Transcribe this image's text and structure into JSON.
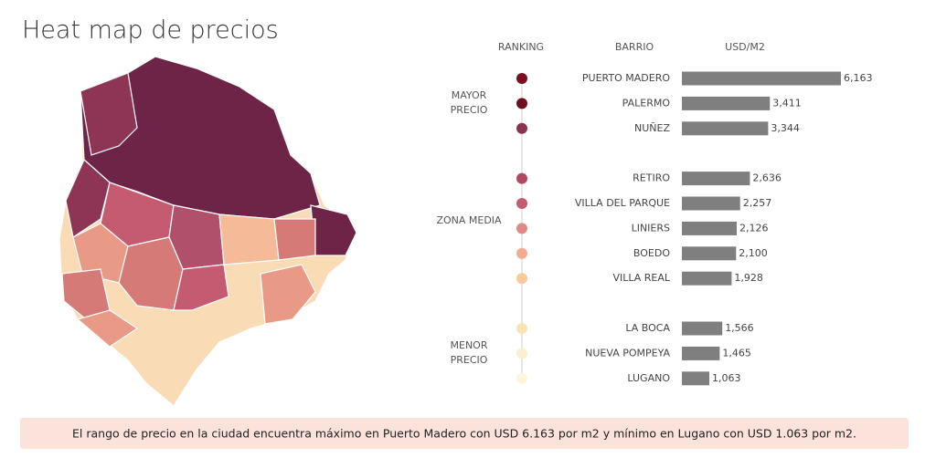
{
  "title": "Heat map de precios",
  "chart_data": {
    "type": "bar",
    "orientation": "horizontal",
    "headers": [
      "RANKING",
      "BARRIO",
      "USD/M2"
    ],
    "xlim": [
      0,
      6200
    ],
    "color": "#7f7f7f",
    "groups": [
      {
        "label": "MAYOR PRECIO",
        "categories": [
          "PUERTO MADERO",
          "PALERMO",
          "NUÑEZ"
        ],
        "values": [
          6163,
          3411,
          3344
        ],
        "value_labels": [
          "6,163",
          "3,411",
          "3,344"
        ],
        "colors": [
          "#7a0f22",
          "#6e0e1e",
          "#8a3350"
        ]
      },
      {
        "label": "ZONA MEDIA",
        "categories": [
          "RETIRO",
          "VILLA DEL PARQUE",
          "LINIERS",
          "BOEDO",
          "VILLA REAL"
        ],
        "values": [
          2636,
          2257,
          2126,
          2100,
          1928
        ],
        "value_labels": [
          "2,636",
          "2,257",
          "2,126",
          "2,100",
          "1,928"
        ],
        "colors": [
          "#b04860",
          "#c45b70",
          "#e08a88",
          "#f2ad90",
          "#f6ca9a"
        ]
      },
      {
        "label": "MENOR PRECIO",
        "categories": [
          "LA BOCA",
          "NUEVA POMPEYA",
          "LUGANO"
        ],
        "values": [
          1566,
          1465,
          1063
        ],
        "value_labels": [
          "1,566",
          "1,465",
          "1,063"
        ],
        "colors": [
          "#fbe4b4",
          "#fbefcf",
          "#fdf5dc"
        ]
      }
    ],
    "annotation": "El rango de precio en la ciudad encuentra máximo en Puerto Madero con USD 6.163 por m2 y mínimo en Lugano con USD 1.063 por m2."
  }
}
